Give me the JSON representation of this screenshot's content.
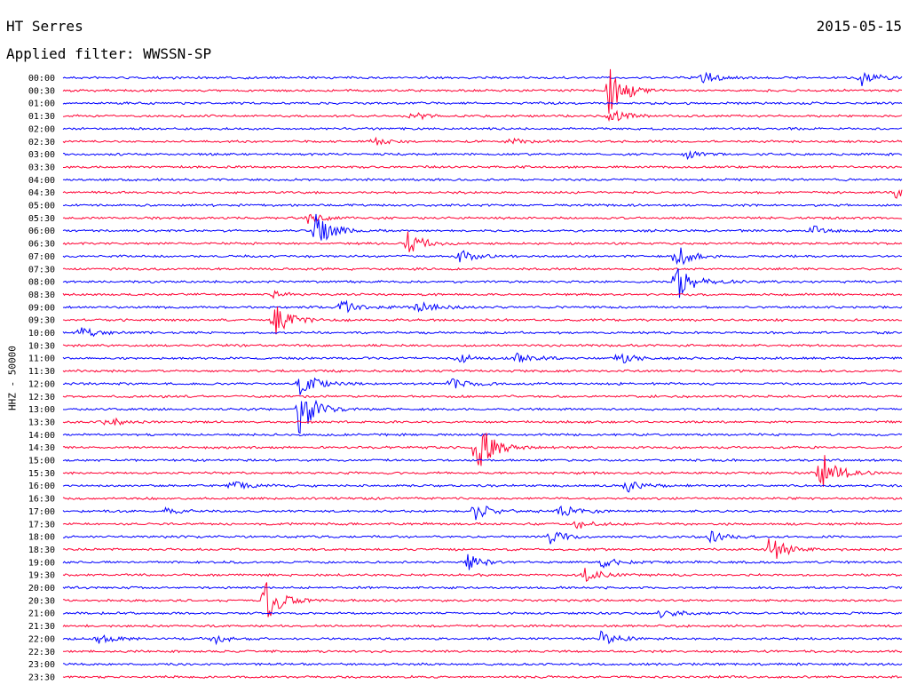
{
  "header": {
    "station": "HT Serres",
    "date": "2015-05-15",
    "filter": "Applied filter: WWSSN-SP"
  },
  "chart_data": {
    "type": "line",
    "title": "HT Serres",
    "subtitle": "Applied filter: WWSSN-SP",
    "ylabel": "HHZ - 50000",
    "colors": {
      "even": "#0000ff",
      "odd": "#ff0033"
    },
    "rows": [
      "00:00",
      "00:30",
      "01:00",
      "01:30",
      "02:00",
      "02:30",
      "03:00",
      "03:30",
      "04:00",
      "04:30",
      "05:00",
      "05:30",
      "06:00",
      "06:30",
      "07:00",
      "07:30",
      "08:00",
      "08:30",
      "09:00",
      "09:30",
      "10:00",
      "10:30",
      "11:00",
      "11:30",
      "12:00",
      "12:30",
      "13:00",
      "13:30",
      "14:00",
      "14:30",
      "15:00",
      "15:30",
      "16:00",
      "16:30",
      "17:00",
      "17:30",
      "18:00",
      "18:30",
      "19:00",
      "19:30",
      "20:00",
      "20:30",
      "21:00",
      "21:30",
      "22:00",
      "22:30",
      "23:00",
      "23:30"
    ],
    "events": [
      {
        "row": 0,
        "t": 0.76,
        "amp": 8
      },
      {
        "row": 0,
        "t": 0.95,
        "amp": 9
      },
      {
        "row": 1,
        "t": 0.65,
        "amp": 28
      },
      {
        "row": 3,
        "t": 0.41,
        "amp": 6
      },
      {
        "row": 3,
        "t": 0.65,
        "amp": 8
      },
      {
        "row": 5,
        "t": 0.37,
        "amp": 4
      },
      {
        "row": 5,
        "t": 0.53,
        "amp": 4
      },
      {
        "row": 6,
        "t": 0.74,
        "amp": 5
      },
      {
        "row": 9,
        "t": 0.99,
        "amp": 7
      },
      {
        "row": 11,
        "t": 0.29,
        "amp": 6
      },
      {
        "row": 12,
        "t": 0.3,
        "amp": 22
      },
      {
        "row": 12,
        "t": 0.89,
        "amp": 6
      },
      {
        "row": 13,
        "t": 0.41,
        "amp": 14
      },
      {
        "row": 14,
        "t": 0.47,
        "amp": 9
      },
      {
        "row": 14,
        "t": 0.73,
        "amp": 14
      },
      {
        "row": 16,
        "t": 0.73,
        "amp": 24
      },
      {
        "row": 17,
        "t": 0.25,
        "amp": 4
      },
      {
        "row": 18,
        "t": 0.33,
        "amp": 10
      },
      {
        "row": 18,
        "t": 0.42,
        "amp": 10
      },
      {
        "row": 19,
        "t": 0.25,
        "amp": 20
      },
      {
        "row": 20,
        "t": 0.02,
        "amp": 7
      },
      {
        "row": 22,
        "t": 0.47,
        "amp": 6
      },
      {
        "row": 22,
        "t": 0.54,
        "amp": 6
      },
      {
        "row": 22,
        "t": 0.66,
        "amp": 8
      },
      {
        "row": 24,
        "t": 0.28,
        "amp": 16
      },
      {
        "row": 24,
        "t": 0.46,
        "amp": 8
      },
      {
        "row": 26,
        "t": 0.28,
        "amp": 32
      },
      {
        "row": 27,
        "t": 0.05,
        "amp": 6
      },
      {
        "row": 29,
        "t": 0.49,
        "amp": 36
      },
      {
        "row": 31,
        "t": 0.9,
        "amp": 30
      },
      {
        "row": 32,
        "t": 0.2,
        "amp": 6
      },
      {
        "row": 32,
        "t": 0.67,
        "amp": 8
      },
      {
        "row": 34,
        "t": 0.12,
        "amp": 5
      },
      {
        "row": 34,
        "t": 0.49,
        "amp": 12
      },
      {
        "row": 34,
        "t": 0.59,
        "amp": 8
      },
      {
        "row": 35,
        "t": 0.61,
        "amp": 6
      },
      {
        "row": 36,
        "t": 0.58,
        "amp": 8
      },
      {
        "row": 36,
        "t": 0.77,
        "amp": 6
      },
      {
        "row": 37,
        "t": 0.84,
        "amp": 18
      },
      {
        "row": 38,
        "t": 0.48,
        "amp": 10
      },
      {
        "row": 38,
        "t": 0.64,
        "amp": 6
      },
      {
        "row": 39,
        "t": 0.62,
        "amp": 8
      },
      {
        "row": 41,
        "t": 0.24,
        "amp": 26
      },
      {
        "row": 42,
        "t": 0.71,
        "amp": 6
      },
      {
        "row": 44,
        "t": 0.04,
        "amp": 6
      },
      {
        "row": 44,
        "t": 0.18,
        "amp": 5
      },
      {
        "row": 44,
        "t": 0.64,
        "amp": 8
      }
    ]
  }
}
